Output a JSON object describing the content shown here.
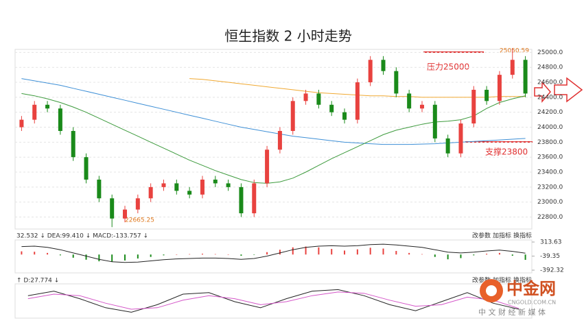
{
  "chart_data": [
    {
      "type": "candlestick",
      "title": "恒生指数 2 小时走势",
      "open": [
        24000,
        24100,
        24300,
        24250,
        23950,
        23600,
        23300,
        23050,
        22780,
        22900,
        23050,
        23200,
        23250,
        23150,
        23100,
        23300,
        23250,
        23200,
        22850,
        23250,
        23700,
        23950,
        24350,
        24450,
        24300,
        24200,
        24100,
        24600,
        24900,
        24750,
        24450,
        24250,
        24300,
        23850,
        23650,
        24050,
        24500,
        24350,
        24700,
        24900
      ],
      "high": [
        24150,
        24350,
        24350,
        24300,
        24000,
        23650,
        23350,
        23100,
        22950,
        23100,
        23250,
        23300,
        23300,
        23200,
        23350,
        23350,
        23300,
        23250,
        23300,
        23750,
        24000,
        24400,
        24500,
        24500,
        24350,
        24250,
        24650,
        24950,
        24950,
        24800,
        24500,
        24350,
        24350,
        23900,
        24100,
        24550,
        24550,
        24750,
        25050.59,
        24950
      ],
      "low": [
        23950,
        24050,
        24200,
        23900,
        23550,
        23250,
        23000,
        22665.25,
        22730,
        22850,
        23000,
        23150,
        23100,
        23050,
        23050,
        23200,
        23150,
        22800,
        22800,
        23200,
        23650,
        23900,
        24300,
        24250,
        24150,
        24050,
        24050,
        24550,
        24700,
        24400,
        24200,
        24200,
        23800,
        23600,
        23600,
        24000,
        24300,
        24300,
        24650,
        24400
      ],
      "close": [
        24100,
        24300,
        24250,
        23950,
        23600,
        23300,
        23050,
        22780,
        22900,
        23050,
        23200,
        23250,
        23150,
        23100,
        23300,
        23250,
        23200,
        22850,
        23250,
        23700,
        23950,
        24350,
        24450,
        24300,
        24200,
        24100,
        24600,
        24900,
        24750,
        24450,
        24250,
        24300,
        23850,
        23650,
        24050,
        24500,
        24350,
        24700,
        24900,
        24450
      ],
      "up_color": "#e8423f",
      "down_color": "#1a8a1a",
      "lines": [
        {
          "color": "#3d8fd6",
          "values": [
            24650,
            24620,
            24590,
            24560,
            24520,
            24480,
            24440,
            24400,
            24360,
            24320,
            24280,
            24240,
            24200,
            24160,
            24120,
            24080,
            24040,
            24000,
            23970,
            23940,
            23910,
            23880,
            23860,
            23840,
            23820,
            23800,
            23790,
            23780,
            23770,
            23770,
            23770,
            23775,
            23780,
            23790,
            23800,
            23810,
            23820,
            23830,
            23840,
            23850
          ]
        },
        {
          "color": "#f0a830",
          "values": [
            null,
            null,
            null,
            null,
            null,
            null,
            null,
            null,
            null,
            null,
            null,
            null,
            null,
            24650,
            24640,
            24620,
            24600,
            24580,
            24560,
            24540,
            24520,
            24500,
            24480,
            24460,
            24450,
            24440,
            24430,
            24420,
            24420,
            24410,
            24410,
            24400,
            24400,
            24400,
            24400,
            24400,
            24400,
            24410,
            24410,
            24410
          ]
        },
        {
          "color": "#3c9a3c",
          "values": [
            24450,
            24420,
            24380,
            24330,
            24270,
            24200,
            24120,
            24040,
            23960,
            23880,
            23800,
            23720,
            23640,
            23560,
            23490,
            23420,
            23360,
            23300,
            23260,
            23250,
            23270,
            23320,
            23400,
            23490,
            23580,
            23660,
            23740,
            23820,
            23900,
            23960,
            24000,
            24040,
            24070,
            24080,
            24100,
            24150,
            24250,
            24330,
            24380,
            24420
          ]
        }
      ],
      "ylim": [
        22640,
        25040
      ],
      "yticks": [
        {
          "value": 25000,
          "label": "25000.0"
        },
        {
          "value": 24800,
          "label": "24800.0"
        },
        {
          "value": 24600,
          "label": "24600.0"
        },
        {
          "value": 24400,
          "label": "24400.0"
        },
        {
          "value": 24200,
          "label": "24200.0"
        },
        {
          "value": 24000,
          "label": "24000.0"
        },
        {
          "value": 23800,
          "label": "23800.0"
        },
        {
          "value": 23600,
          "label": "23600.0"
        },
        {
          "value": 23400,
          "label": "23400.0"
        },
        {
          "value": 23200,
          "label": "23200.0"
        },
        {
          "value": 23000,
          "label": "23000.0"
        },
        {
          "value": 22800,
          "label": "22800.0"
        }
      ],
      "grid": true,
      "annotations": [
        "压力25000",
        "支撑23800",
        "22665.25",
        "25050.59"
      ]
    },
    {
      "type": "bar",
      "header": "32.532 ↓ DEA:99.410 ↓ MACD:-133.757 ↓",
      "tools": [
        "改参数",
        "加指标",
        "换指标"
      ],
      "values": [
        80,
        70,
        40,
        -20,
        -80,
        -130,
        -170,
        -180,
        -150,
        -100,
        -60,
        -20,
        0,
        10,
        20,
        10,
        0,
        -30,
        -10,
        60,
        120,
        180,
        200,
        180,
        140,
        100,
        130,
        170,
        150,
        90,
        40,
        10,
        -60,
        -120,
        -90,
        -20,
        20,
        40,
        -30,
        -133.757
      ],
      "line": [
        200,
        210,
        180,
        120,
        40,
        -40,
        -120,
        -180,
        -200,
        -190,
        -160,
        -130,
        -110,
        -100,
        -90,
        -90,
        -100,
        -120,
        -100,
        -40,
        40,
        120,
        180,
        210,
        220,
        210,
        220,
        250,
        260,
        240,
        210,
        180,
        120,
        60,
        40,
        60,
        90,
        110,
        80,
        32.532
      ],
      "up_color": "#e8423f",
      "down_color": "#1a8a1a",
      "line_color": "#222222",
      "ylim": [
        -392.32,
        313.63
      ],
      "yticks": [
        313.63,
        -39.35,
        -392.32
      ]
    },
    {
      "type": "line",
      "header": "↑ D:27.774 ↓",
      "tools": [
        "改参数",
        "加指标",
        "换指标"
      ],
      "series": [
        {
          "color": "#222222",
          "values": [
            70,
            85,
            60,
            30,
            15,
            40,
            75,
            80,
            50,
            30,
            60,
            85,
            90,
            70,
            40,
            20,
            50,
            80,
            45,
            25
          ]
        },
        {
          "color": "#d455c8",
          "values": [
            60,
            75,
            70,
            45,
            25,
            30,
            55,
            70,
            60,
            40,
            50,
            70,
            82,
            78,
            55,
            35,
            40,
            65,
            55,
            27.774
          ]
        }
      ],
      "ylim": [
        0,
        100
      ]
    }
  ],
  "watermark": {
    "name": "中金网",
    "site": "CNGOLD.COM.CN",
    "slogan": "中 文 财 经 新 媒 体"
  }
}
